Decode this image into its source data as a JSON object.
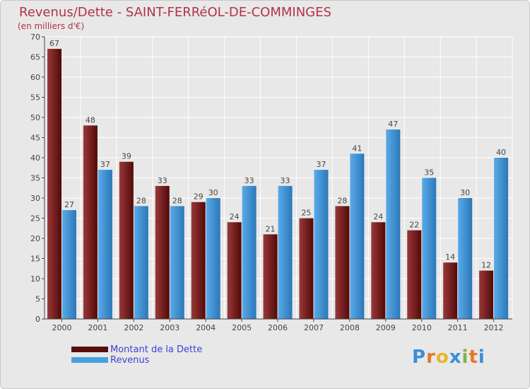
{
  "title": "Revenus/Dette - SAINT-FERRéOL-DE-COMMINGES",
  "subtitle": "(en milliers d'€)",
  "colors": {
    "background": "#e8e8e8",
    "title": "#b2324a",
    "dette_light": "#9a3838",
    "dette_dark": "#520a0a",
    "revenus_light": "#5aaae8",
    "revenus_dark": "#2c78b8",
    "legend_text": "#4040d8"
  },
  "legend": {
    "items": [
      {
        "label": "Montant de la Dette",
        "color": "#5a0d0d"
      },
      {
        "label": "Revenus",
        "color": "#48a0e0"
      }
    ]
  },
  "logo": {
    "letters": [
      "P",
      "r",
      "o",
      "x",
      "i",
      "t",
      "i"
    ],
    "colors": [
      "#3a8fd6",
      "#e6782a",
      "#e8b52a",
      "#3a8fd6",
      "#7ab648",
      "#e6782a",
      "#3a8fd6"
    ]
  },
  "chart_data": {
    "type": "bar",
    "title": "Revenus/Dette - SAINT-FERRéOL-DE-COMMINGES",
    "ylabel": "(en milliers d'€)",
    "xlabel": "",
    "categories": [
      "2000",
      "2001",
      "2002",
      "2003",
      "2004",
      "2005",
      "2006",
      "2007",
      "2008",
      "2009",
      "2010",
      "2011",
      "2012"
    ],
    "series": [
      {
        "name": "Montant de la Dette",
        "values": [
          67,
          48,
          39,
          33,
          29,
          24,
          21,
          25,
          28,
          24,
          22,
          14,
          12
        ]
      },
      {
        "name": "Revenus",
        "values": [
          27,
          37,
          28,
          28,
          30,
          33,
          33,
          37,
          41,
          47,
          35,
          30,
          40
        ]
      }
    ],
    "ylim": [
      0,
      70
    ],
    "yticks": [
      0,
      5,
      10,
      15,
      20,
      25,
      30,
      35,
      40,
      45,
      50,
      55,
      60,
      65,
      70
    ],
    "grid": true,
    "legend_position": "bottom-left"
  }
}
